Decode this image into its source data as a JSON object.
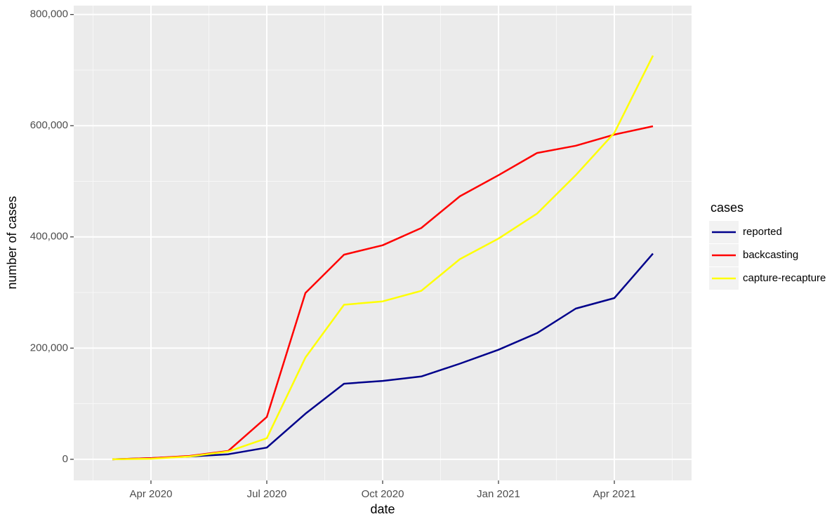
{
  "chart_data": {
    "type": "line",
    "x_label": "date",
    "y_label": "number of cases",
    "x": [
      "2020-03",
      "2020-04",
      "2020-05",
      "2020-06",
      "2020-07",
      "2020-08",
      "2020-09",
      "2020-10",
      "2020-11",
      "2020-12",
      "2021-01",
      "2021-02",
      "2021-03",
      "2021-04",
      "2021-05"
    ],
    "series": [
      {
        "name": "reported",
        "color": "#00008b",
        "values": [
          0,
          2000,
          5000,
          9000,
          21000,
          82000,
          136000,
          141000,
          149000,
          172000,
          197000,
          227000,
          271000,
          290000,
          370000
        ]
      },
      {
        "name": "backcasting",
        "color": "#ff0000",
        "values": [
          0,
          2000,
          6000,
          15000,
          76000,
          299000,
          368000,
          385000,
          416000,
          473000,
          511000,
          551000,
          564000,
          584000,
          599000
        ]
      },
      {
        "name": "capture-recapture",
        "color": "#ffff00",
        "values": [
          0,
          1000,
          5000,
          14000,
          38000,
          183000,
          278000,
          284000,
          303000,
          360000,
          397000,
          442000,
          511000,
          587000,
          726000
        ]
      }
    ],
    "xlim": [
      "2020-02",
      "2021-06"
    ],
    "xticks": [
      {
        "value": "2020-04",
        "label": "Apr 2020"
      },
      {
        "value": "2020-07",
        "label": "Jul 2020"
      },
      {
        "value": "2020-10",
        "label": "Oct 2020"
      },
      {
        "value": "2021-01",
        "label": "Jan 2021"
      },
      {
        "value": "2021-04",
        "label": "Apr 2021"
      }
    ],
    "ylim": [
      -38000,
      816000
    ],
    "yticks": [
      0,
      {
        "value": 200000,
        "label": "200,000"
      },
      {
        "value": 400000,
        "label": "400,000"
      },
      {
        "value": 600000,
        "label": "600,000"
      },
      {
        "value": 800000,
        "label": "800,000"
      }
    ],
    "grid": true,
    "legend_title": "cases",
    "legend_position": "right"
  }
}
